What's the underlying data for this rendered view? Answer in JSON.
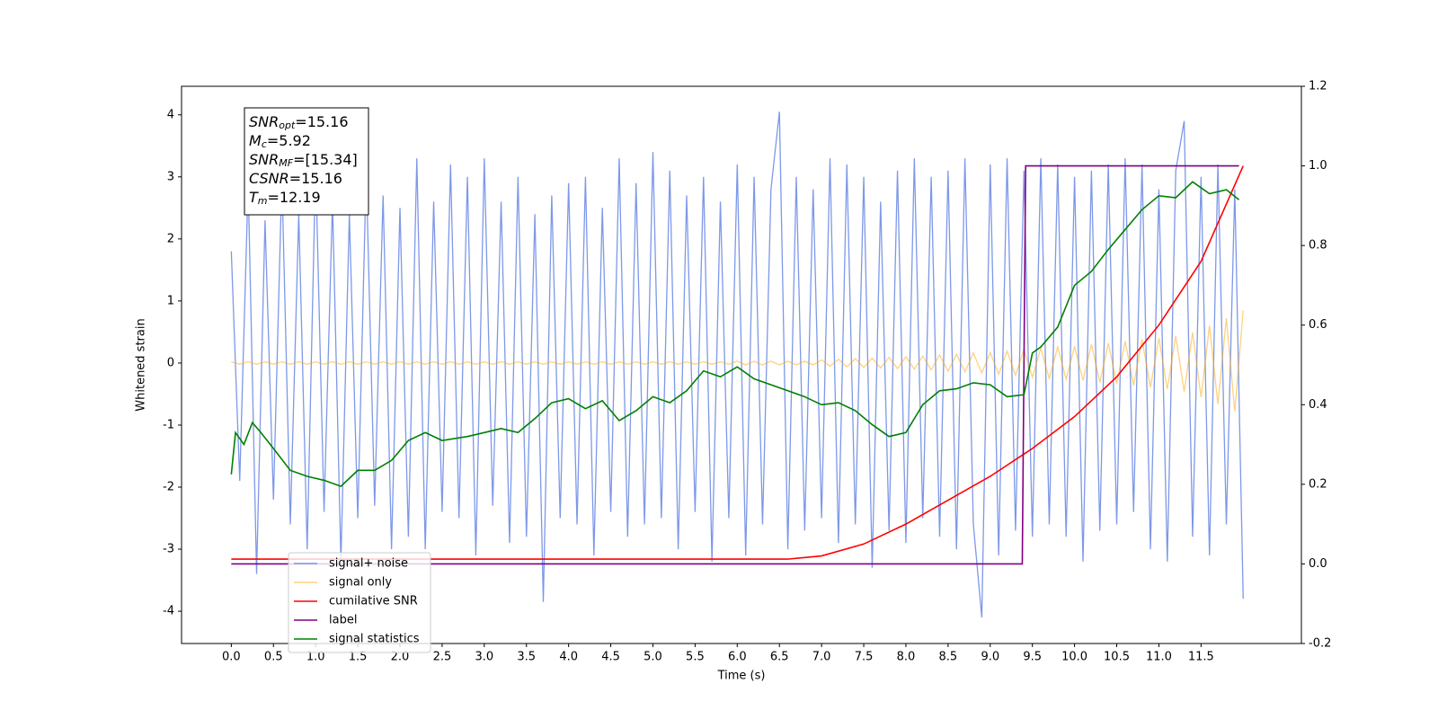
{
  "chart_data": {
    "type": "line",
    "x_label": "Time (s)",
    "y_label": "Whitened strain",
    "xlim": [
      -0.59,
      12.69
    ],
    "ylim": [
      -4.52,
      4.46
    ],
    "y2lim": [
      -0.2,
      1.2
    ],
    "xticks": [
      {
        "value": 0,
        "label": "0.0"
      },
      0.5,
      {
        "value": 1,
        "label": "1.0"
      },
      1.5,
      {
        "value": 2,
        "label": "2.0"
      },
      2.5,
      {
        "value": 3,
        "label": "3.0"
      },
      3.5,
      {
        "value": 4,
        "label": "4.0"
      },
      4.5,
      {
        "value": 5,
        "label": "5.0"
      },
      5.5,
      {
        "value": 6,
        "label": "6.0"
      },
      6.5,
      {
        "value": 7,
        "label": "7.0"
      },
      7.5,
      {
        "value": 8,
        "label": "8.0"
      },
      8.5,
      {
        "value": 9,
        "label": "9.0"
      },
      9.5,
      {
        "value": 10,
        "label": "10.0"
      },
      10.5,
      {
        "value": 11,
        "label": "11.0"
      },
      11.5
    ],
    "yticks": [
      -4,
      -3,
      -2,
      -1,
      0,
      1,
      2,
      3,
      4
    ],
    "y2ticks": [
      -0.2,
      {
        "value": 0,
        "label": "0.0"
      },
      0.2,
      0.4,
      0.6,
      0.8,
      {
        "value": 1,
        "label": "1.0"
      },
      1.2
    ],
    "legend": "lower left",
    "annotation": [
      {
        "text": "SNR",
        "sub": "opt",
        "rest": "=15.16"
      },
      {
        "text": "M",
        "sub": "c",
        "rest": "=5.92"
      },
      {
        "text": "SNR",
        "sub": "MF",
        "rest": "=[15.34]"
      },
      {
        "text": "CSNR",
        "rest": "=15.16"
      },
      {
        "text": "T",
        "sub": "m",
        "rest": "=12.19"
      }
    ],
    "x": [
      0,
      0.1,
      0.2,
      0.3,
      0.4,
      0.5,
      0.6,
      0.7,
      0.8,
      0.9,
      1,
      1.1,
      1.2,
      1.3,
      1.4,
      1.5,
      1.6,
      1.7,
      1.8,
      1.9,
      2,
      2.1,
      2.2,
      2.3,
      2.4,
      2.5,
      2.6,
      2.7,
      2.8,
      2.9,
      3,
      3.1,
      3.2,
      3.3,
      3.4,
      3.5,
      3.6,
      3.7,
      3.8,
      3.9,
      4,
      4.1,
      4.2,
      4.3,
      4.4,
      4.5,
      4.6,
      4.7,
      4.8,
      4.9,
      5,
      5.1,
      5.2,
      5.3,
      5.4,
      5.5,
      5.6,
      5.7,
      5.8,
      5.9,
      6,
      6.1,
      6.2,
      6.3,
      6.4,
      6.5,
      6.6,
      6.7,
      6.8,
      6.9,
      7,
      7.1,
      7.2,
      7.3,
      7.4,
      7.5,
      7.6,
      7.7,
      7.8,
      7.9,
      8,
      8.1,
      8.2,
      8.3,
      8.4,
      8.5,
      8.6,
      8.7,
      8.8,
      8.9,
      9,
      9.1,
      9.2,
      9.3,
      9.4,
      9.5,
      9.6,
      9.7,
      9.8,
      9.9,
      10,
      10.1,
      10.2,
      10.3,
      10.4,
      10.5,
      10.6,
      10.7,
      10.8,
      10.9,
      11,
      11.1,
      11.2,
      11.3,
      11.4,
      11.5,
      11.6,
      11.7,
      11.8,
      11.9,
      12
    ],
    "series": [
      {
        "name": "signal+ noise",
        "color": "#6f8de6",
        "values": [
          1.8,
          -1.9,
          2.9,
          -3.4,
          2.3,
          -2.2,
          3.0,
          -2.6,
          2.4,
          -3.0,
          3.2,
          -2.4,
          2.6,
          -3.2,
          2.4,
          -2.5,
          3.1,
          -2.3,
          2.7,
          -3.0,
          2.5,
          -2.8,
          3.3,
          -3.0,
          2.6,
          -2.4,
          3.2,
          -2.5,
          3.0,
          -3.1,
          3.3,
          -2.3,
          2.6,
          -2.9,
          3.0,
          -2.8,
          2.4,
          -3.85,
          2.7,
          -2.5,
          2.9,
          -2.6,
          3.0,
          -3.1,
          2.5,
          -2.4,
          3.3,
          -2.8,
          2.9,
          -2.6,
          3.4,
          -2.5,
          3.1,
          -3.0,
          2.7,
          -2.4,
          3.0,
          -3.2,
          2.6,
          -2.5,
          3.2,
          -3.1,
          3.0,
          -2.6,
          2.8,
          4.05,
          -3.0,
          3.0,
          -2.7,
          2.8,
          -2.5,
          3.3,
          -2.9,
          3.2,
          -2.6,
          3.0,
          -3.3,
          2.6,
          -2.7,
          3.1,
          -2.9,
          3.3,
          -2.5,
          3.0,
          -2.8,
          3.1,
          -3.0,
          3.3,
          -2.6,
          -4.1,
          3.2,
          -3.1,
          3.3,
          -2.7,
          3.1,
          -2.8,
          3.3,
          -2.6,
          3.2,
          -2.8,
          3.0,
          -3.2,
          3.1,
          -2.7,
          3.2,
          -2.6,
          3.3,
          -2.4,
          3.2,
          -3.0,
          2.8,
          -3.2,
          3.1,
          3.9,
          -2.8,
          3.0,
          -3.1,
          3.2,
          -2.6,
          2.8,
          -3.8
        ]
      },
      {
        "name": "signal only",
        "color": "#ffa500",
        "values": [
          0.02,
          -0.02,
          0.02,
          -0.02,
          0.02,
          -0.02,
          0.02,
          -0.02,
          0.02,
          -0.02,
          0.02,
          -0.02,
          0.02,
          -0.02,
          0.02,
          -0.02,
          0.02,
          -0.02,
          0.02,
          -0.02,
          0.02,
          -0.02,
          0.02,
          -0.02,
          0.02,
          -0.02,
          0.02,
          -0.02,
          0.02,
          -0.02,
          0.02,
          -0.02,
          0.02,
          -0.02,
          0.02,
          -0.02,
          0.02,
          -0.02,
          0.02,
          -0.02,
          0.02,
          -0.02,
          0.02,
          -0.02,
          0.02,
          -0.02,
          0.02,
          -0.02,
          0.02,
          -0.02,
          0.02,
          -0.02,
          0.02,
          -0.02,
          0.02,
          -0.02,
          0.02,
          -0.02,
          0.02,
          -0.02,
          0.03,
          -0.03,
          0.03,
          -0.03,
          0.03,
          -0.03,
          0.03,
          -0.03,
          0.03,
          -0.03,
          0.05,
          -0.05,
          0.06,
          -0.06,
          0.07,
          -0.07,
          0.08,
          -0.08,
          0.09,
          -0.09,
          0.1,
          -0.1,
          0.11,
          -0.11,
          0.13,
          -0.13,
          0.14,
          -0.14,
          0.16,
          -0.16,
          0.17,
          -0.18,
          0.19,
          -0.2,
          0.22,
          -0.23,
          0.24,
          -0.25,
          0.26,
          -0.26,
          0.27,
          -0.28,
          0.3,
          -0.31,
          0.32,
          -0.33,
          0.35,
          -0.36,
          0.38,
          -0.39,
          0.4,
          -0.42,
          0.44,
          -0.46,
          0.49,
          -0.55,
          0.6,
          -0.66,
          0.72,
          -0.78,
          0.85
        ]
      },
      {
        "name": "cumilative SNR",
        "color": "#ff0000",
        "axis": "y2",
        "x": [
          0,
          6.6,
          7.0,
          7.5,
          8.0,
          8.5,
          9.0,
          9.5,
          10.0,
          10.5,
          11.0,
          11.5,
          12.0
        ],
        "values": [
          0.012,
          0.012,
          0.02,
          0.05,
          0.1,
          0.16,
          0.22,
          0.29,
          0.37,
          0.47,
          0.6,
          0.76,
          1.0
        ]
      },
      {
        "name": "label",
        "color": "#800080",
        "axis": "y2",
        "x": [
          0,
          9.38,
          9.42,
          11.95
        ],
        "values": [
          0,
          0,
          1.0,
          1.0
        ]
      },
      {
        "name": "signal statistics",
        "color": "#008000",
        "axis": "y2",
        "x": [
          0,
          0.05,
          0.15,
          0.25,
          0.35,
          0.5,
          0.7,
          0.9,
          1.1,
          1.3,
          1.5,
          1.7,
          1.9,
          2.1,
          2.3,
          2.5,
          2.8,
          3.0,
          3.2,
          3.4,
          3.6,
          3.8,
          4.0,
          4.2,
          4.4,
          4.6,
          4.8,
          5.0,
          5.2,
          5.4,
          5.6,
          5.8,
          6.0,
          6.2,
          6.4,
          6.6,
          6.8,
          7.0,
          7.2,
          7.4,
          7.6,
          7.8,
          8.0,
          8.2,
          8.4,
          8.6,
          8.8,
          9.0,
          9.2,
          9.4,
          9.5,
          9.6,
          9.8,
          10.0,
          10.2,
          10.4,
          10.6,
          10.8,
          11.0,
          11.2,
          11.4,
          11.6,
          11.8,
          11.95
        ],
        "values": [
          0.225,
          0.33,
          0.3,
          0.355,
          0.33,
          0.29,
          0.235,
          0.22,
          0.21,
          0.195,
          0.235,
          0.235,
          0.26,
          0.31,
          0.33,
          0.31,
          0.32,
          0.33,
          0.34,
          0.33,
          0.365,
          0.405,
          0.415,
          0.39,
          0.41,
          0.36,
          0.385,
          0.42,
          0.405,
          0.435,
          0.485,
          0.47,
          0.495,
          0.465,
          0.45,
          0.435,
          0.42,
          0.4,
          0.405,
          0.385,
          0.35,
          0.32,
          0.33,
          0.4,
          0.435,
          0.44,
          0.455,
          0.45,
          0.42,
          0.425,
          0.53,
          0.545,
          0.595,
          0.7,
          0.735,
          0.79,
          0.84,
          0.89,
          0.925,
          0.92,
          0.96,
          0.93,
          0.94,
          0.915
        ]
      }
    ]
  }
}
